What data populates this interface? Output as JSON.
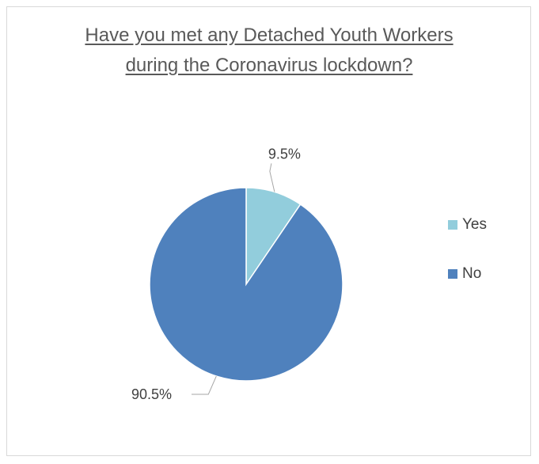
{
  "chart_data": {
    "type": "pie",
    "title": "Have you met any Detached Youth Workers during the Coronavirus lockdown?",
    "categories": [
      "Yes",
      "No"
    ],
    "values": [
      9.5,
      90.5
    ],
    "value_labels": [
      "9.5%",
      "90.5%"
    ],
    "colors": [
      "#92cddc",
      "#4f81bd"
    ],
    "legend_position": "right"
  }
}
